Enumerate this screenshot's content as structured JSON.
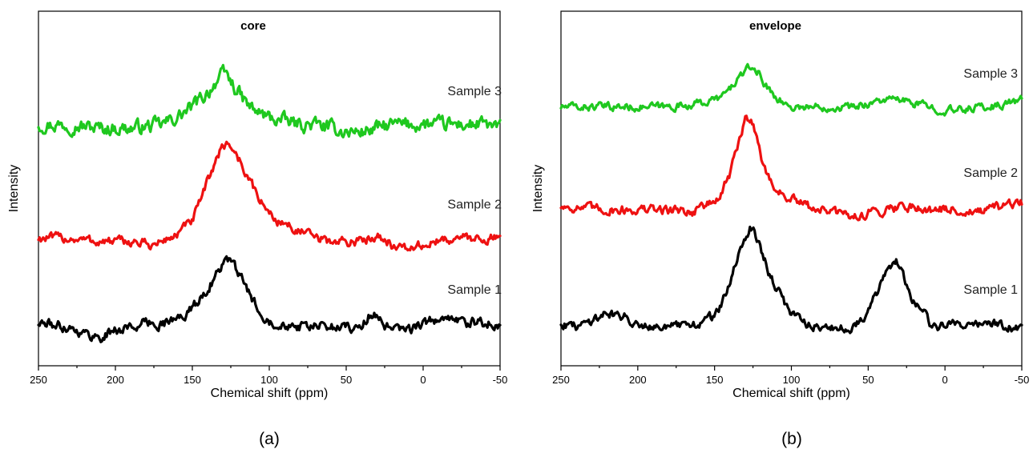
{
  "chart_data": [
    {
      "type": "line",
      "panel_label": "(a)",
      "title": "core",
      "xlabel": "Chemical shift (ppm)",
      "ylabel": "Intensity",
      "xlim": [
        250,
        -50
      ],
      "xticks": [
        250,
        200,
        150,
        100,
        50,
        0,
        -50
      ],
      "xtick_labels": [
        "250",
        "200",
        "150",
        "100",
        "50",
        "0",
        "-50"
      ],
      "yticks_visible": false,
      "grid": false,
      "series": [
        {
          "name": "Sample 3",
          "color": "#1fc81f",
          "offset": 0.68,
          "noise": 0.018,
          "x": [
            250,
            230,
            210,
            190,
            170,
            160,
            150,
            145,
            140,
            135,
            130,
            127,
            125,
            120,
            115,
            110,
            100,
            90,
            80,
            70,
            60,
            50,
            45,
            40,
            30,
            20,
            10,
            0,
            -10,
            -20,
            -30,
            -40,
            -50
          ],
          "y": [
            0.0,
            0.0,
            -0.01,
            -0.01,
            0.0,
            0.02,
            0.05,
            0.07,
            0.09,
            0.12,
            0.14,
            0.14,
            0.12,
            0.09,
            0.06,
            0.04,
            0.02,
            0.01,
            0.0,
            0.0,
            -0.01,
            -0.02,
            -0.02,
            -0.02,
            -0.01,
            0.0,
            0.0,
            0.0,
            0.0,
            0.0,
            0.0,
            0.0,
            -0.01
          ]
        },
        {
          "name": "Sample 2",
          "color": "#ee1111",
          "offset": 0.36,
          "noise": 0.012,
          "x": [
            250,
            230,
            210,
            190,
            175,
            170,
            160,
            150,
            145,
            140,
            135,
            130,
            127,
            125,
            122,
            118,
            115,
            110,
            105,
            100,
            95,
            90,
            80,
            70,
            60,
            50,
            40,
            35,
            30,
            25,
            20,
            15,
            10,
            0,
            -10,
            -20,
            -30,
            -40,
            -50
          ],
          "y": [
            0.0,
            0.0,
            -0.01,
            -0.01,
            -0.02,
            -0.01,
            0.01,
            0.05,
            0.1,
            0.16,
            0.22,
            0.26,
            0.27,
            0.26,
            0.24,
            0.21,
            0.18,
            0.14,
            0.1,
            0.07,
            0.05,
            0.04,
            0.02,
            0.0,
            -0.01,
            -0.01,
            -0.01,
            0.0,
            0.01,
            0.0,
            -0.02,
            -0.03,
            -0.03,
            -0.02,
            -0.01,
            0.0,
            0.0,
            0.0,
            0.0
          ]
        },
        {
          "name": "Sample 1",
          "color": "#000000",
          "offset": 0.12,
          "noise": 0.013,
          "x": [
            250,
            230,
            220,
            210,
            200,
            190,
            180,
            170,
            160,
            150,
            145,
            140,
            135,
            130,
            127,
            125,
            120,
            115,
            110,
            105,
            100,
            95,
            90,
            80,
            70,
            60,
            50,
            40,
            35,
            32,
            30,
            25,
            20,
            10,
            0,
            -10,
            -20,
            -30,
            -40,
            -50
          ],
          "y": [
            0.0,
            -0.01,
            -0.03,
            -0.04,
            -0.02,
            -0.01,
            0.0,
            0.0,
            0.01,
            0.04,
            0.07,
            0.1,
            0.13,
            0.17,
            0.18,
            0.17,
            0.14,
            0.1,
            0.06,
            0.03,
            0.01,
            0.0,
            0.0,
            -0.01,
            -0.01,
            -0.01,
            -0.01,
            -0.01,
            0.02,
            0.03,
            0.02,
            -0.01,
            -0.02,
            -0.02,
            0.0,
            0.01,
            0.01,
            0.0,
            0.0,
            0.0
          ]
        }
      ]
    },
    {
      "type": "line",
      "panel_label": "(b)",
      "title": "envelope",
      "xlabel": "Chemical shift (ppm)",
      "ylabel": "Intensity",
      "xlim": [
        250,
        -50
      ],
      "xticks": [
        250,
        200,
        150,
        100,
        50,
        0,
        -50
      ],
      "xtick_labels": [
        "250",
        "200",
        "150",
        "100",
        "50",
        "0",
        "-50"
      ],
      "yticks_visible": false,
      "grid": false,
      "series": [
        {
          "name": "Sample 3",
          "color": "#1fc81f",
          "offset": 0.73,
          "noise": 0.01,
          "x": [
            250,
            220,
            200,
            180,
            160,
            150,
            145,
            140,
            135,
            130,
            127,
            125,
            122,
            118,
            115,
            110,
            105,
            100,
            90,
            80,
            70,
            60,
            50,
            40,
            30,
            20,
            10,
            0,
            -10,
            -20,
            -30,
            -40,
            -50
          ],
          "y": [
            0.0,
            0.0,
            0.0,
            0.0,
            0.01,
            0.02,
            0.03,
            0.05,
            0.08,
            0.1,
            0.11,
            0.11,
            0.1,
            0.07,
            0.05,
            0.03,
            0.01,
            0.0,
            0.0,
            0.0,
            0.0,
            0.0,
            0.01,
            0.02,
            0.02,
            0.01,
            0.0,
            -0.01,
            -0.01,
            0.0,
            0.0,
            0.01,
            0.02
          ]
        },
        {
          "name": "Sample 2",
          "color": "#ee1111",
          "offset": 0.45,
          "noise": 0.012,
          "x": [
            250,
            220,
            200,
            180,
            170,
            165,
            160,
            150,
            145,
            140,
            135,
            130,
            127,
            125,
            122,
            120,
            115,
            110,
            105,
            100,
            90,
            80,
            70,
            60,
            50,
            40,
            30,
            20,
            10,
            0,
            -10,
            -20,
            -30,
            -40,
            -50
          ],
          "y": [
            0.0,
            -0.01,
            -0.01,
            -0.01,
            -0.01,
            -0.02,
            0.0,
            0.01,
            0.04,
            0.09,
            0.17,
            0.24,
            0.25,
            0.24,
            0.19,
            0.14,
            0.08,
            0.05,
            0.03,
            0.02,
            0.0,
            -0.01,
            -0.02,
            -0.03,
            -0.02,
            -0.01,
            0.0,
            0.0,
            -0.01,
            -0.01,
            -0.01,
            -0.02,
            -0.01,
            0.0,
            0.01
          ]
        },
        {
          "name": "Sample 1",
          "color": "#000000",
          "offset": 0.12,
          "noise": 0.012,
          "x": [
            250,
            240,
            230,
            220,
            210,
            200,
            180,
            170,
            160,
            150,
            145,
            140,
            135,
            130,
            127,
            125,
            122,
            120,
            115,
            110,
            105,
            100,
            95,
            90,
            80,
            70,
            60,
            55,
            50,
            45,
            40,
            35,
            32,
            30,
            28,
            25,
            20,
            15,
            12,
            10,
            5,
            0,
            -10,
            -20,
            -30,
            -40,
            -50
          ],
          "y": [
            0.0,
            -0.01,
            0.01,
            0.03,
            0.02,
            0.0,
            -0.01,
            -0.01,
            0.0,
            0.02,
            0.06,
            0.11,
            0.18,
            0.24,
            0.27,
            0.27,
            0.24,
            0.21,
            0.15,
            0.1,
            0.06,
            0.03,
            0.02,
            0.0,
            -0.01,
            -0.02,
            -0.01,
            0.01,
            0.04,
            0.08,
            0.12,
            0.16,
            0.18,
            0.17,
            0.14,
            0.1,
            0.06,
            0.04,
            0.03,
            0.0,
            -0.01,
            -0.01,
            0.0,
            0.0,
            0.0,
            -0.01,
            -0.02
          ]
        }
      ]
    }
  ]
}
